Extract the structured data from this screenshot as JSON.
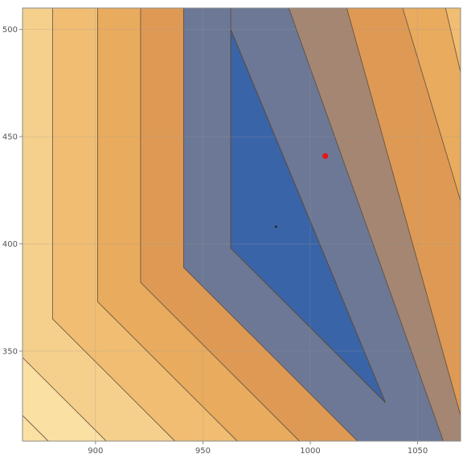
{
  "chart_data": {
    "type": "contour",
    "title": "",
    "xlabel": "",
    "ylabel": "",
    "xlim": [
      866,
      1070
    ],
    "ylim": [
      308,
      510
    ],
    "x_ticks": [
      {
        "value": 900,
        "label": "900"
      },
      {
        "value": 950,
        "label": "950"
      },
      {
        "value": 1000,
        "label": "1000"
      },
      {
        "value": 1050,
        "label": "1050"
      }
    ],
    "y_ticks": [
      {
        "value": 350,
        "label": "350"
      },
      {
        "value": 400,
        "label": "400"
      },
      {
        "value": 450,
        "label": "450"
      },
      {
        "value": 500,
        "label": "500"
      }
    ],
    "grid": true,
    "minimum_region": {
      "shape": "triangle",
      "vertices": [
        [
          963,
          500
        ],
        [
          963,
          398
        ],
        [
          1035,
          326
        ]
      ]
    },
    "points": [
      {
        "x": 1007,
        "y": 441,
        "color": "#e8151b"
      },
      {
        "x": 984,
        "y": 408,
        "color": "#222222"
      }
    ],
    "contour_levels": [
      {
        "band": 0,
        "color": "#3a64a8"
      },
      {
        "band": 1,
        "color": "#6c7896"
      },
      {
        "band": 2,
        "color": "#a48672"
      },
      {
        "band": 3,
        "color": "#de9a54"
      },
      {
        "band": 4,
        "color": "#e9ab5e"
      },
      {
        "band": 5,
        "color": "#f0bd72"
      },
      {
        "band": 6,
        "color": "#f5cf8c"
      },
      {
        "band": 7,
        "color": "#fbe0a4"
      }
    ]
  }
}
